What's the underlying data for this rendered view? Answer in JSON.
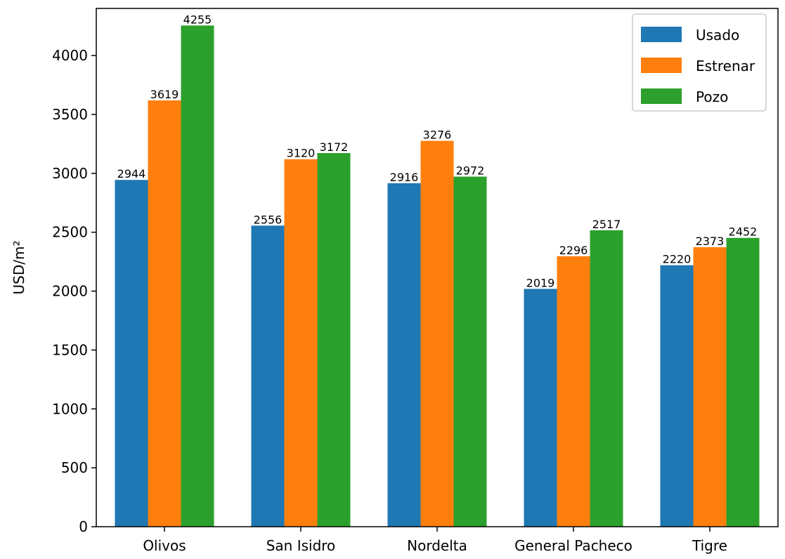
{
  "chart_data": {
    "type": "bar",
    "title": "",
    "xlabel": "",
    "ylabel": "USD/m²",
    "ylim": [
      0,
      4400
    ],
    "yticks": [
      0,
      500,
      1000,
      1500,
      2000,
      2500,
      3000,
      3500,
      4000
    ],
    "categories": [
      "Olivos",
      "San Isidro",
      "Nordelta",
      "General Pacheco",
      "Tigre"
    ],
    "series": [
      {
        "name": "Usado",
        "color": "#1f77b4",
        "values": [
          2944,
          2556,
          2916,
          2019,
          2220
        ]
      },
      {
        "name": "Estrenar",
        "color": "#ff7f0e",
        "values": [
          3619,
          3120,
          3276,
          2296,
          2373
        ]
      },
      {
        "name": "Pozo",
        "color": "#2ca02c",
        "values": [
          4255,
          3172,
          2972,
          2517,
          2452
        ]
      }
    ],
    "grid": false,
    "legend_position": "top-right",
    "data_labels": true
  }
}
